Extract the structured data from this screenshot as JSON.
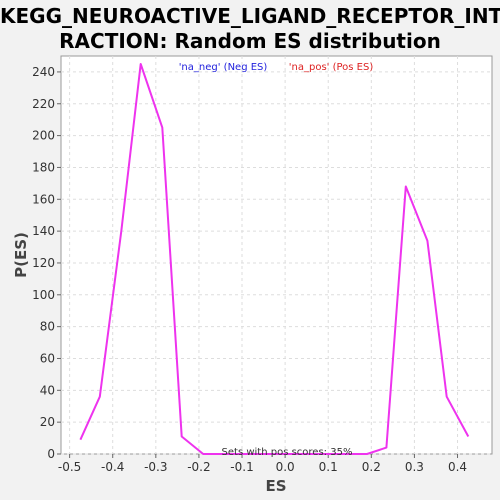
{
  "chart_data": {
    "type": "line",
    "title": "KEGG_NEUROACTIVE_LIGAND_RECEPTOR_INTE\nRACTION: Random ES distribution",
    "xlabel": "ES",
    "ylabel": "P(ES)",
    "xlim": [
      -0.52,
      0.48
    ],
    "ylim": [
      0,
      250
    ],
    "xticks": [
      "-0.5",
      "-0.4",
      "-0.3",
      "-0.2",
      "-0.1",
      "0.0",
      "0.1",
      "0.2",
      "0.3",
      "0.4"
    ],
    "xtick_values": [
      -0.5,
      -0.4,
      -0.3,
      -0.2,
      -0.1,
      0.0,
      0.1,
      0.2,
      0.3,
      0.4
    ],
    "yticks": [
      "0",
      "20",
      "40",
      "60",
      "80",
      "100",
      "120",
      "140",
      "160",
      "180",
      "200",
      "220",
      "240"
    ],
    "ytick_values": [
      0,
      20,
      40,
      60,
      80,
      100,
      120,
      140,
      160,
      180,
      200,
      220,
      240
    ],
    "grid": true,
    "legend_position": "top-center",
    "legend": [
      {
        "label": "'na_neg' (Neg ES)",
        "color": "#2222dd"
      },
      {
        "label": "'na_pos' (Pos ES)",
        "color": "#dd2222"
      }
    ],
    "annotation": "Sets with pos scores: 35%",
    "series_color": "#ee33ee",
    "series": [
      {
        "x": [
          -0.475,
          -0.43,
          -0.38,
          -0.335,
          -0.285,
          -0.24,
          -0.19,
          -0.145,
          -0.095,
          -0.05,
          0.0,
          0.045,
          0.095,
          0.14,
          0.19,
          0.235,
          0.28,
          0.33,
          0.375,
          0.425
        ],
        "y": [
          9,
          36,
          140,
          245,
          205,
          11,
          0,
          0,
          0,
          0,
          0,
          0,
          0,
          0,
          0,
          4,
          168,
          134,
          36,
          11
        ]
      }
    ]
  }
}
